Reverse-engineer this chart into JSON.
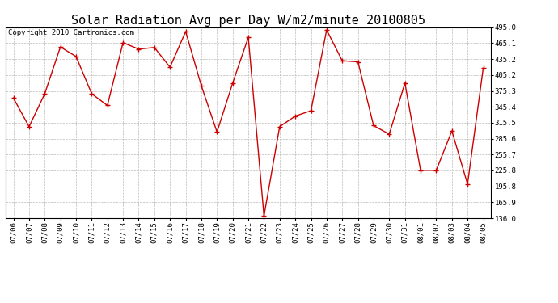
{
  "title": "Solar Radiation Avg per Day W/m2/minute 20100805",
  "copyright_text": "Copyright 2010 Cartronics.com",
  "dates": [
    "07/06",
    "07/07",
    "07/08",
    "07/09",
    "07/10",
    "07/11",
    "07/12",
    "07/13",
    "07/14",
    "07/15",
    "07/16",
    "07/17",
    "07/18",
    "07/19",
    "07/20",
    "07/21",
    "07/22",
    "07/23",
    "07/24",
    "07/25",
    "07/26",
    "07/27",
    "07/28",
    "07/29",
    "07/30",
    "07/31",
    "08/01",
    "08/02",
    "08/03",
    "08/04",
    "08/05"
  ],
  "values": [
    362,
    308,
    370,
    458,
    440,
    370,
    348,
    466,
    454,
    457,
    420,
    487,
    385,
    298,
    390,
    476,
    140,
    308,
    328,
    338,
    490,
    432,
    430,
    310,
    294,
    390,
    226,
    226,
    300,
    200,
    418
  ],
  "y_ticks": [
    136.0,
    165.9,
    195.8,
    225.8,
    255.7,
    285.6,
    315.5,
    345.4,
    375.3,
    405.2,
    435.2,
    465.1,
    495.0
  ],
  "y_tick_labels": [
    "136.0",
    "165.9",
    "195.8",
    "225.8",
    "255.7",
    "285.6",
    "315.5",
    "345.4",
    "375.3",
    "405.2",
    "435.2",
    "465.1",
    "495.0"
  ],
  "ylim": [
    136.0,
    495.0
  ],
  "line_color": "#cc0000",
  "marker": "+",
  "marker_size": 5,
  "marker_linewidth": 1.0,
  "grid_color": "#bbbbbb",
  "bg_color": "#ffffff",
  "title_fontsize": 11,
  "tick_fontsize": 6.5,
  "copyright_fontsize": 6.5,
  "linewidth": 1.0
}
